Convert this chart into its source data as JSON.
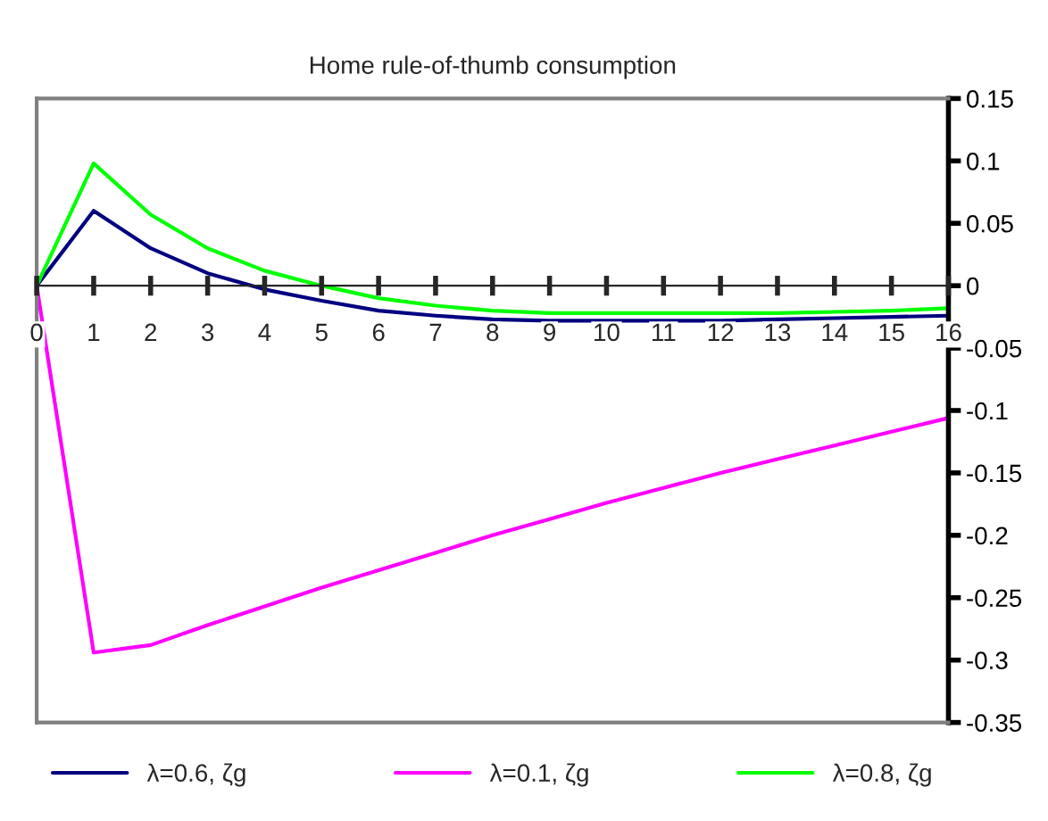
{
  "chart_data": {
    "type": "line",
    "title": "Home rule-of-thumb consumption",
    "categories": [
      "0",
      "1",
      "2",
      "3",
      "4",
      "5",
      "6",
      "7",
      "8",
      "9",
      "10",
      "11",
      "12",
      "13",
      "14",
      "15",
      "16"
    ],
    "series": [
      {
        "name": "λ=0.6, ζg",
        "color": "#000080",
        "values": [
          0,
          0.06,
          0.03,
          0.01,
          -0.003,
          -0.012,
          -0.02,
          -0.024,
          -0.027,
          -0.028,
          -0.028,
          -0.028,
          -0.028,
          -0.027,
          -0.026,
          -0.025,
          -0.024
        ]
      },
      {
        "name": "λ=0.1, ζg",
        "color": "#ff00ff",
        "values": [
          0,
          -0.294,
          -0.288,
          -0.272,
          -0.257,
          -0.242,
          -0.228,
          -0.214,
          -0.2,
          -0.187,
          -0.174,
          -0.162,
          -0.15,
          -0.139,
          -0.128,
          -0.117,
          -0.106
        ]
      },
      {
        "name": "λ=0.8, ζg",
        "color": "#00ff00",
        "values": [
          0,
          0.098,
          0.057,
          0.03,
          0.012,
          0.0,
          -0.01,
          -0.016,
          -0.02,
          -0.022,
          -0.022,
          -0.022,
          -0.022,
          -0.022,
          -0.021,
          -0.02,
          -0.018
        ]
      }
    ],
    "ylim": [
      -0.35,
      0.15
    ],
    "yticks": [
      0.15,
      0.1,
      0.05,
      0,
      -0.05,
      -0.1,
      -0.15,
      -0.2,
      -0.25,
      -0.3,
      -0.35
    ],
    "grid": false,
    "legend": "bottom",
    "marker": "none",
    "line_style": "solid"
  }
}
